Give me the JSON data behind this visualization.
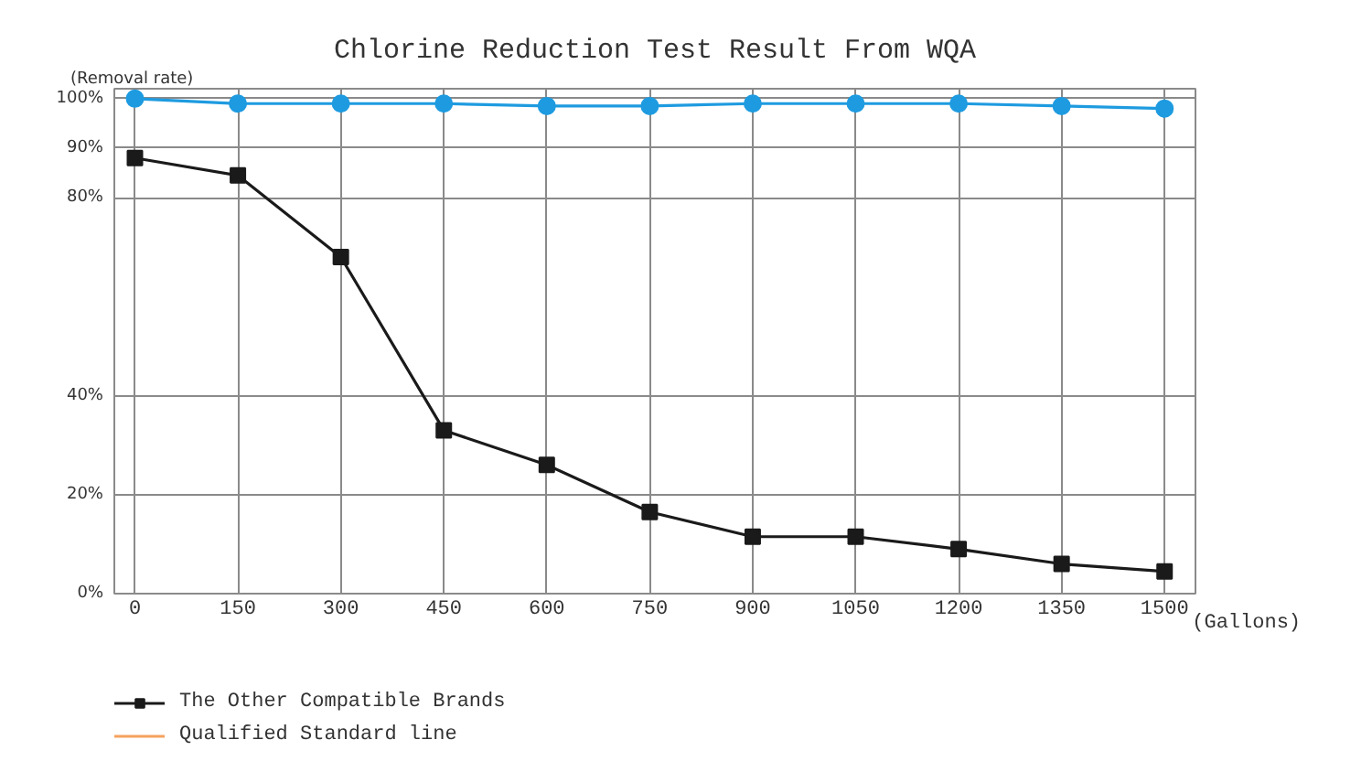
{
  "chart_data": {
    "type": "line",
    "title": "Chlorine Reduction Test Result From WQA",
    "ylabel": "(Removal rate)",
    "xlabel": "(Gallons)",
    "x": [
      0,
      150,
      300,
      450,
      600,
      750,
      900,
      1050,
      1200,
      1350,
      1500
    ],
    "series": [
      {
        "color": "#1e9be0",
        "marker": "circle",
        "values": [
          100,
          99,
          99,
          99,
          98.5,
          98.5,
          99,
          99,
          99,
          98.5,
          98
        ]
      },
      {
        "name": "The Other Compatible Brands",
        "color": "#1a1a1a",
        "marker": "square",
        "values": [
          88,
          84.5,
          68,
          33,
          26,
          16.5,
          11.5,
          11.5,
          9,
          6,
          4.5
        ]
      },
      {
        "name": "Qualified Standard line",
        "color": "#f5a25d",
        "marker": "none",
        "values": [
          null,
          null,
          null,
          null,
          null,
          null,
          null,
          null,
          null,
          null,
          null
        ]
      }
    ],
    "xlim": [
      -30,
      1545
    ],
    "ylim": [
      0,
      102
    ],
    "xticks": [
      0,
      150,
      300,
      450,
      600,
      750,
      900,
      1050,
      1200,
      1350,
      1500
    ],
    "yticks": [
      {
        "value": 0,
        "label": "0%"
      },
      {
        "value": 20,
        "label": "20%"
      },
      {
        "value": 40,
        "label": "40%"
      },
      {
        "value": 80,
        "label": "80%"
      },
      {
        "value": 90,
        "label": "90%"
      },
      {
        "value": 100,
        "label": "100%"
      }
    ],
    "grid": true,
    "legend": "bottom left",
    "line_style": "solid"
  }
}
